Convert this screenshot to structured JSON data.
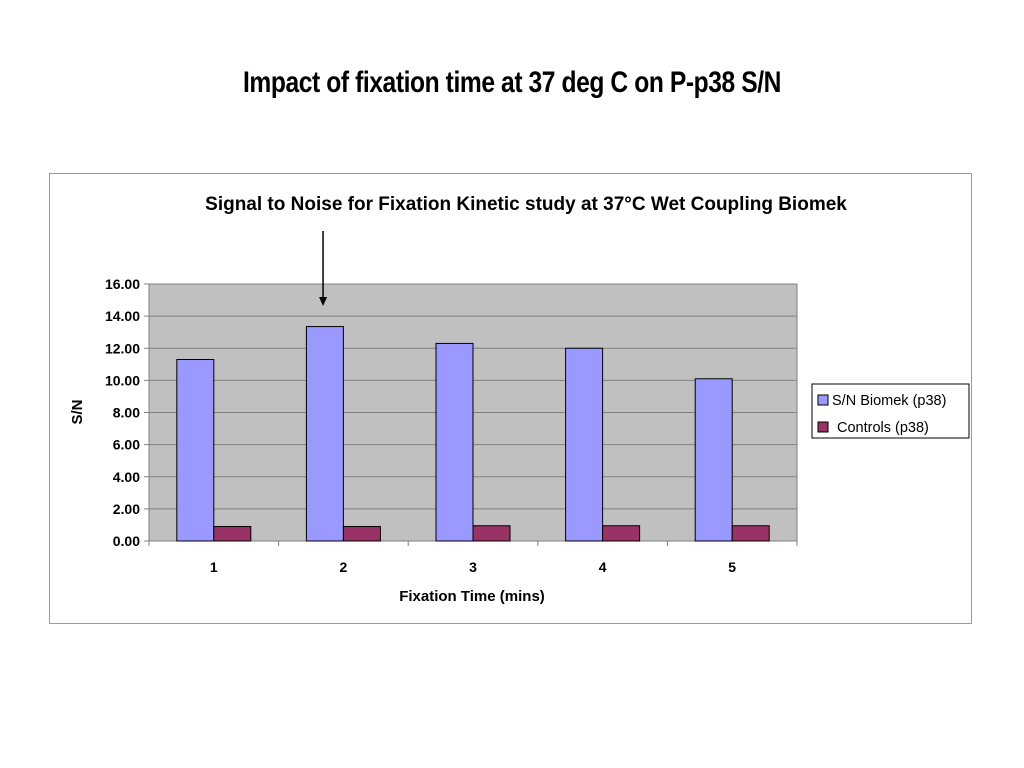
{
  "slide": {
    "title": "Impact of fixation time at 37 deg C on P-p38 S/N"
  },
  "chart_data": {
    "type": "bar",
    "title": "Signal to Noise for Fixation Kinetic study at 37°C Wet Coupling Biomek",
    "xlabel": "Fixation Time (mins)",
    "ylabel": "S/N",
    "categories": [
      "1",
      "2",
      "3",
      "4",
      "5"
    ],
    "ylim": [
      0,
      16
    ],
    "yticks": [
      "0.00",
      "2.00",
      "4.00",
      "6.00",
      "8.00",
      "10.00",
      "12.00",
      "14.00",
      "16.00"
    ],
    "grid": true,
    "legend_position": "right",
    "series": [
      {
        "name": "S/N Biomek (p38)",
        "color": "#9999ff",
        "values": [
          11.3,
          13.35,
          12.3,
          12.0,
          10.1
        ]
      },
      {
        "name": "Controls (p38)",
        "color": "#993366",
        "values": [
          0.9,
          0.9,
          0.95,
          0.95,
          0.95
        ]
      }
    ],
    "annotation": {
      "type": "arrow",
      "points_to_category": "2"
    }
  }
}
